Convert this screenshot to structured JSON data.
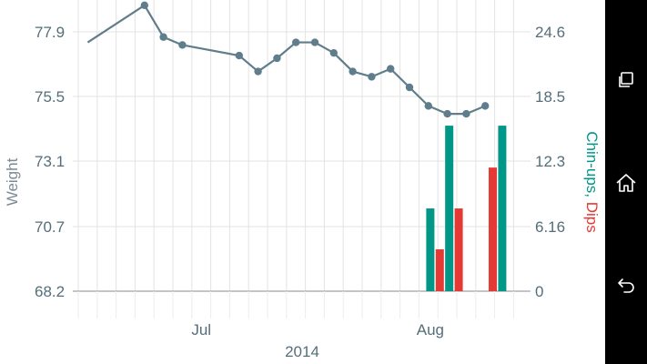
{
  "chart_data": {
    "type": "bar+line",
    "title": "",
    "xlabel": "2014",
    "x_tick_labels": [
      "Jul",
      "Aug"
    ],
    "left_axis": {
      "label": "Weight",
      "ticks": [
        "77.9",
        "75.5",
        "73.1",
        "70.7",
        "68.2"
      ],
      "ylim": [
        68.2,
        79.2
      ]
    },
    "right_axis": {
      "label_parts": [
        {
          "text": "Chin-ups",
          "color": "#009688"
        },
        {
          "text": ", ",
          "color": "#009688"
        },
        {
          "text": "Dips",
          "color": "#e53935"
        }
      ],
      "ticks": [
        "24.6",
        "18.5",
        "12.3",
        "6.16",
        "0"
      ],
      "ylim": [
        0,
        28.5
      ]
    },
    "series": [
      {
        "name": "Weight",
        "type": "line",
        "axis": "left",
        "color": "#607d8b",
        "days": [
          -2,
          1,
          2,
          3,
          6,
          7,
          8,
          9,
          10,
          11,
          12,
          13,
          14,
          15,
          16,
          17,
          18,
          19,
          20
        ],
        "values": [
          77.6,
          79.0,
          77.8,
          77.5,
          77.1,
          76.5,
          77.0,
          77.6,
          77.6,
          77.2,
          76.5,
          76.3,
          76.6,
          75.9,
          75.2,
          74.9,
          74.9,
          75.2,
          null
        ],
        "first_point_marker": false
      },
      {
        "name": "Chin-ups",
        "type": "bar",
        "axis": "right",
        "color": "#009688",
        "bars": [
          {
            "day": 16.1,
            "value": 8.1
          },
          {
            "day": 17.1,
            "value": 16.2
          },
          {
            "day": 19.9,
            "value": 16.2
          }
        ]
      },
      {
        "name": "Dips",
        "type": "bar",
        "axis": "right",
        "color": "#e53935",
        "bars": [
          {
            "day": 16.6,
            "value": 4.1
          },
          {
            "day": 17.6,
            "value": 8.1
          },
          {
            "day": 19.4,
            "value": 12.1
          }
        ]
      }
    ],
    "axis_color": "#546e7a",
    "grid_color": "#e3e3e3"
  },
  "nav": {
    "recent_icon": "recent-apps-icon",
    "home_icon": "home-icon",
    "back_icon": "back-icon"
  }
}
